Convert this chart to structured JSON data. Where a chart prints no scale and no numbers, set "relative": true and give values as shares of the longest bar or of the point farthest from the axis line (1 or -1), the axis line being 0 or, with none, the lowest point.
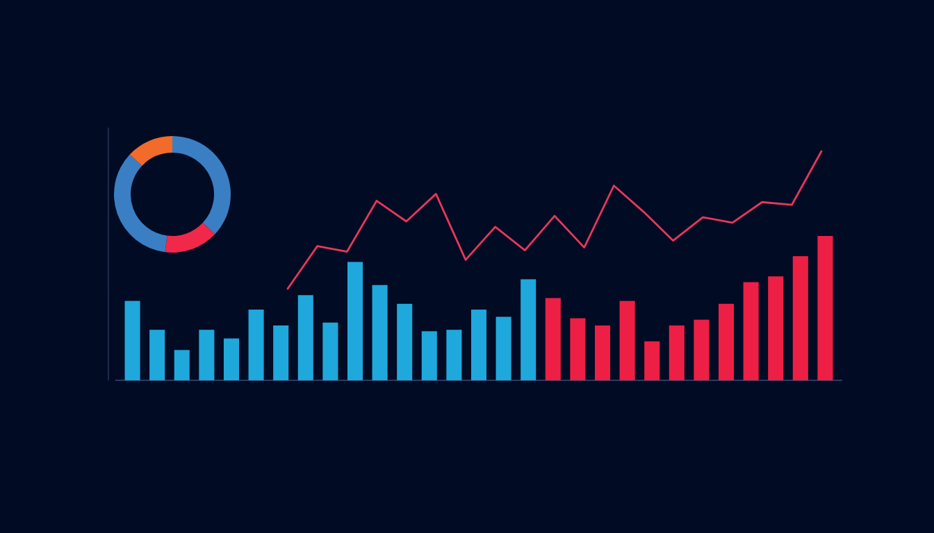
{
  "chart_data": [
    {
      "type": "bar",
      "relative": true,
      "categories": [
        null,
        null,
        null,
        null,
        null,
        null,
        null,
        null,
        null,
        null,
        null,
        null,
        null,
        null,
        null,
        null,
        null,
        null,
        null,
        null,
        null,
        null,
        null,
        null,
        null,
        null,
        null,
        null,
        null
      ],
      "values": [
        0.55,
        0.35,
        0.21,
        0.35,
        0.29,
        0.49,
        0.38,
        0.59,
        0.4,
        0.82,
        0.66,
        0.53,
        0.34,
        0.35,
        0.49,
        0.44,
        0.7,
        0.57,
        0.43,
        0.38,
        0.55,
        0.27,
        0.38,
        0.42,
        0.53,
        0.68,
        0.72,
        0.86,
        1
      ],
      "colors": [
        "#1fa8dc",
        "#1fa8dc",
        "#1fa8dc",
        "#1fa8dc",
        "#1fa8dc",
        "#1fa8dc",
        "#1fa8dc",
        "#1fa8dc",
        "#1fa8dc",
        "#1fa8dc",
        "#1fa8dc",
        "#1fa8dc",
        "#1fa8dc",
        "#1fa8dc",
        "#1fa8dc",
        "#1fa8dc",
        "#1fa8dc",
        "#ee1f45",
        "#ee1f45",
        "#ee1f45",
        "#ee1f45",
        "#ee1f45",
        "#ee1f45",
        "#ee1f45",
        "#ee1f45",
        "#ee1f45",
        "#ee1f45",
        "#ee1f45",
        "#ee1f45"
      ]
    },
    {
      "type": "line",
      "relative": true,
      "categories": [
        null,
        null,
        null,
        null,
        null,
        null,
        null,
        null,
        null,
        null,
        null,
        null,
        null,
        null,
        null,
        null,
        null,
        null,
        null
      ],
      "color": "#e8375a",
      "values": [
        0,
        0.31,
        0.27,
        0.64,
        0.49,
        0.69,
        0.21,
        0.45,
        0.28,
        0.53,
        0.3,
        0.75,
        0.56,
        0.35,
        0.52,
        0.48,
        0.63,
        0.61,
        1
      ]
    },
    {
      "type": "donut",
      "categories": [
        null,
        null,
        null,
        null
      ],
      "values": [
        37,
        15,
        35,
        13
      ],
      "colors": [
        "#3a7fc4",
        "#f0284a",
        "#3a7fc4",
        "#f26b2a"
      ]
    }
  ]
}
